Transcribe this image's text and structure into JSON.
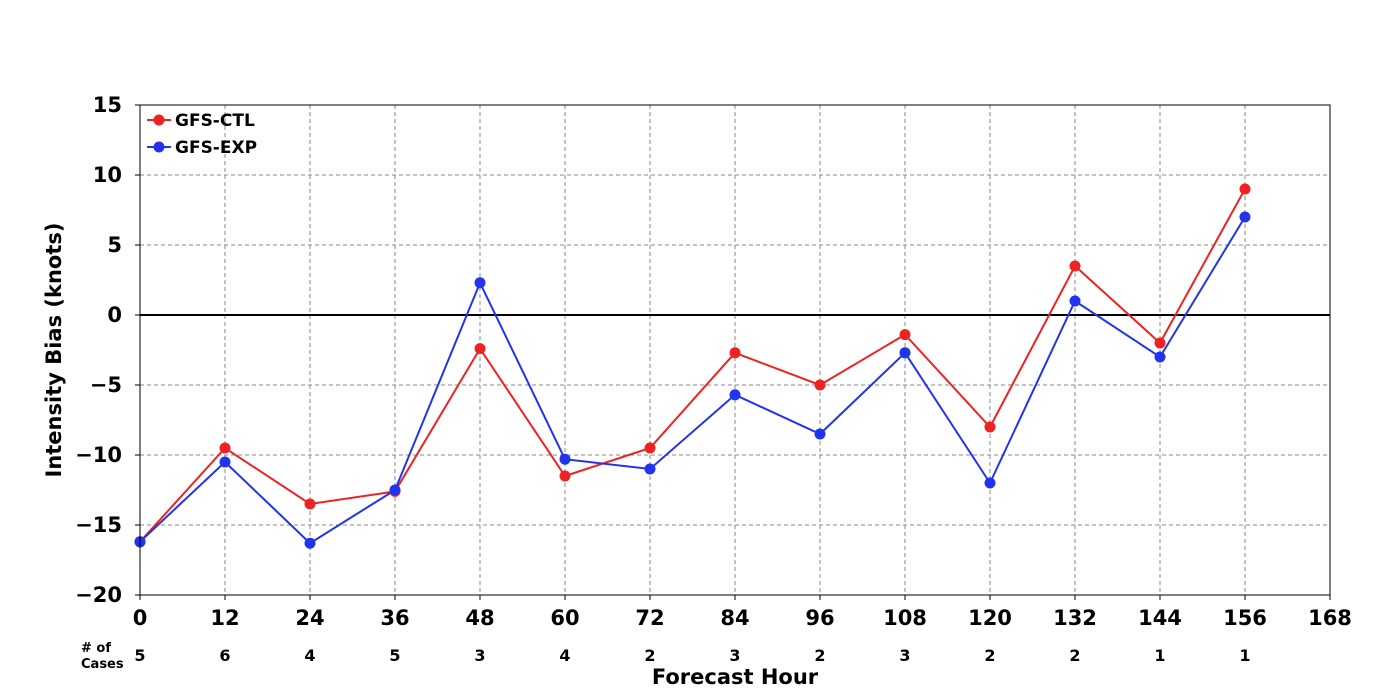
{
  "chart_data": {
    "type": "line",
    "title": "",
    "xlabel": "Forecast Hour",
    "ylabel": "Intensity Bias (knots)",
    "xlim": [
      0,
      168
    ],
    "ylim": [
      -20,
      15
    ],
    "x_ticks": [
      "0",
      "12",
      "24",
      "36",
      "48",
      "60",
      "72",
      "84",
      "96",
      "108",
      "120",
      "132",
      "144",
      "156",
      "168"
    ],
    "y_ticks": [
      "15",
      "10",
      "5",
      "0",
      "−5",
      "−10",
      "−15",
      "−20"
    ],
    "grid": true,
    "legend_position": "top-left",
    "x": [
      0,
      12,
      24,
      36,
      48,
      60,
      72,
      84,
      96,
      108,
      120,
      132,
      144,
      156
    ],
    "series": [
      {
        "name": "GFS-CTL",
        "color": "#ee2222",
        "values": [
          -16.2,
          -9.5,
          -13.5,
          -12.6,
          -2.4,
          -11.5,
          -9.5,
          -2.7,
          -5.0,
          -1.4,
          -8.0,
          3.5,
          -2.0,
          9.0
        ]
      },
      {
        "name": "GFS-EXP",
        "color": "#2233ee",
        "values": [
          -16.2,
          -10.5,
          -16.3,
          -12.5,
          2.3,
          -10.3,
          -11.0,
          -5.7,
          -8.5,
          -2.7,
          -12.0,
          1.0,
          -3.0,
          7.0
        ]
      }
    ],
    "cases_label_line1": "# of",
    "cases_label_line2": "Cases",
    "cases": [
      "5",
      "6",
      "4",
      "5",
      "3",
      "4",
      "2",
      "3",
      "2",
      "3",
      "2",
      "2",
      "1",
      "1"
    ]
  }
}
